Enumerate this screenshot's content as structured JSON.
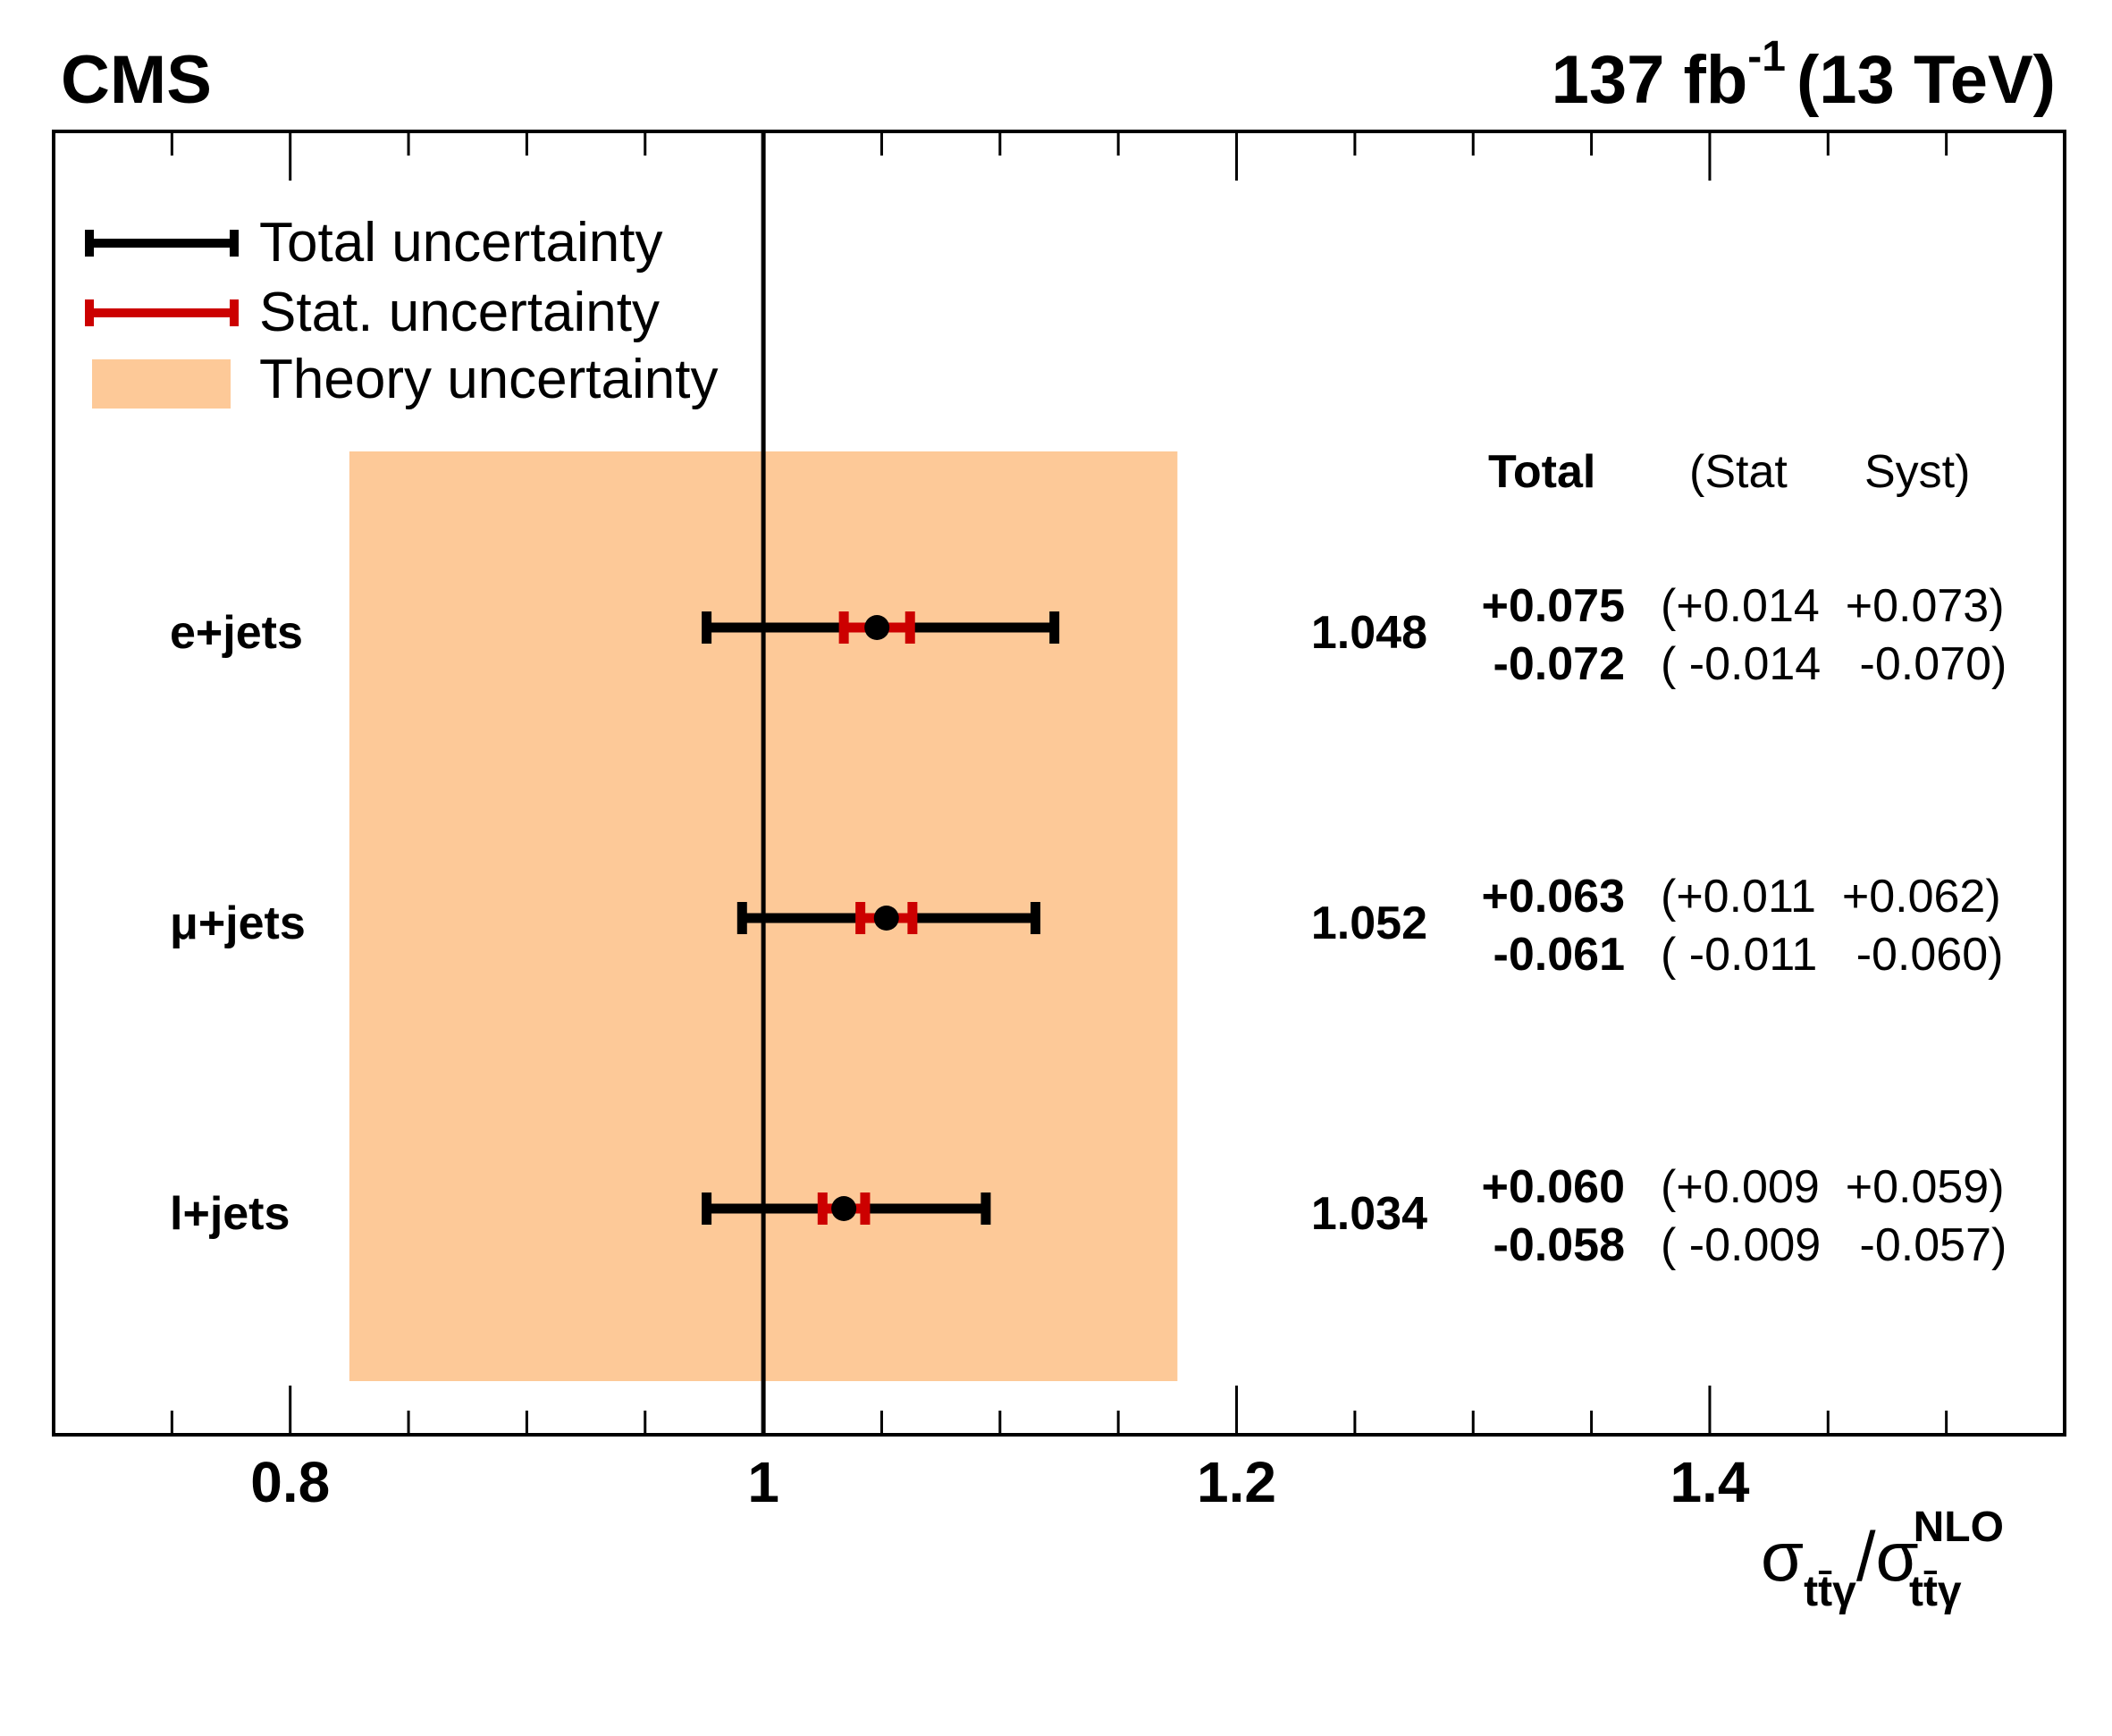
{
  "header": {
    "experiment": "CMS",
    "lumi_value": "137 fb",
    "lumi_exp": "-1",
    "energy": "(13 TeV)"
  },
  "legend": {
    "total": "Total uncertainty",
    "stat": "Stat. uncertainty",
    "theory": "Theory uncertainty"
  },
  "table_header": {
    "total": "Total",
    "stat": "(Stat",
    "syst": "Syst)"
  },
  "x_axis": {
    "label_main": "σ",
    "label_sub": "tt̄γ",
    "label_sep": "/σ",
    "label_sup": "NLO",
    "label_sub2": "tt̄γ",
    "ticks": [
      "0.8",
      "1",
      "1.2",
      "1.4"
    ]
  },
  "colors": {
    "total": "#000000",
    "stat": "#cc0000",
    "theory": "#fdc998"
  },
  "chart_data": {
    "type": "forest",
    "xlim": [
      0.7,
      1.55
    ],
    "reference_line": 1.0,
    "theory_band": [
      0.825,
      1.175
    ],
    "rows": [
      {
        "label": "e+jets",
        "value": 1.048,
        "value_text": "1.048",
        "total_up": 0.075,
        "total_dn": 0.072,
        "stat_up": 0.014,
        "stat_dn": 0.014,
        "total_up_text": "+0.075",
        "total_dn_text": "-0.072",
        "unc_up_text": "(+0.014  +0.073)",
        "unc_dn_text": "( -0.014   -0.070)"
      },
      {
        "label": "μ+jets",
        "value": 1.052,
        "value_text": "1.052",
        "total_up": 0.063,
        "total_dn": 0.061,
        "stat_up": 0.011,
        "stat_dn": 0.011,
        "total_up_text": "+0.063",
        "total_dn_text": "-0.061",
        "unc_up_text": "(+0.011  +0.062)",
        "unc_dn_text": "( -0.011   -0.060)"
      },
      {
        "label": "l+jets",
        "value": 1.034,
        "value_text": "1.034",
        "total_up": 0.06,
        "total_dn": 0.058,
        "stat_up": 0.009,
        "stat_dn": 0.009,
        "total_up_text": "+0.060",
        "total_dn_text": "-0.058",
        "unc_up_text": "(+0.009  +0.059)",
        "unc_dn_text": "( -0.009   -0.057)"
      }
    ]
  }
}
